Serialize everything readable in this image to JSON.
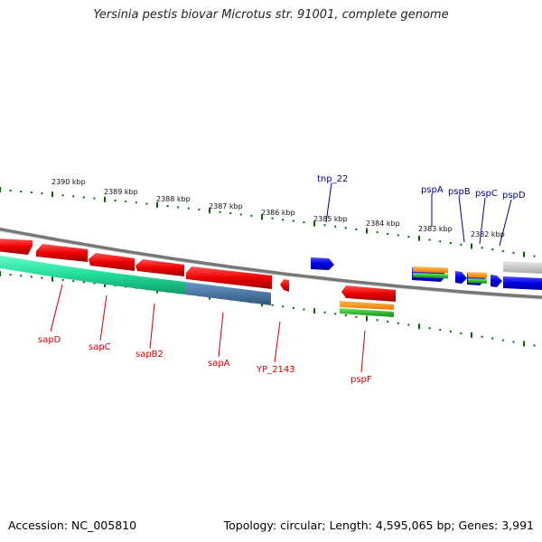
{
  "title": "Yersinia pestis biovar Microtus str. 91001, complete genome",
  "footer": {
    "accession": "Accession: NC_005810",
    "summary": "Topology: circular; Length: 4,595,065 bp; Genes: 3,991"
  },
  "scale_labels": [
    "2390 kbp",
    "2389 kbp",
    "2388 kbp",
    "2387 kbp",
    "2386 kbp",
    "2385 kbp",
    "2384 kbp",
    "2383 kbp",
    "2382 kbp"
  ],
  "gene_labels_top": [
    "tnp_22",
    "pspA",
    "pspB",
    "pspC",
    "pspD"
  ],
  "gene_labels_bottom": [
    "sapD",
    "sapC",
    "sapB2",
    "sapA",
    "YP_2143",
    "pspF"
  ],
  "colors": {
    "forward_gene": "#0000e6",
    "reverse_gene": "#ee0000",
    "top_label": "#00008b",
    "bottom_label": "#cc0000",
    "tick": "#006600",
    "backbone": "#777777",
    "feature_green": "#22dd99",
    "feature_blue": "#4477aa",
    "orange": "#ff8800",
    "green": "#22aa22"
  }
}
